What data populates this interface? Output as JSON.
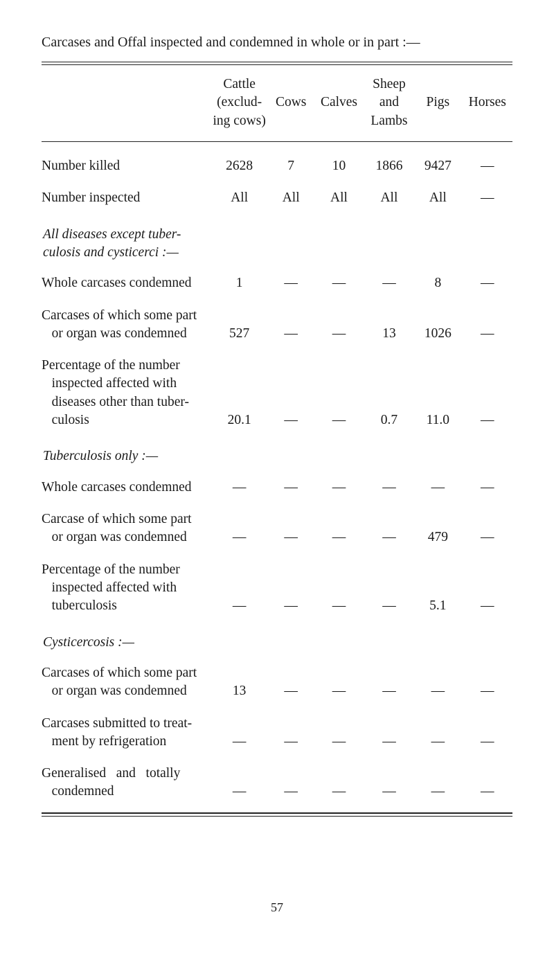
{
  "title": "Carcases and Offal inspected and condemned in whole or in part :—",
  "page_number": "57",
  "dash": "—",
  "columns": {
    "cattle_line1": "Cattle",
    "cattle_line2": "(exclud-",
    "cattle_line3": "ing cows)",
    "cows": "Cows",
    "calves": "Calves",
    "sheep_line1": "Sheep",
    "sheep_line2": "and",
    "sheep_line3": "Lambs",
    "pigs": "Pigs",
    "horses": "Horses"
  },
  "sections": {
    "diseases_except": "All diseases except tuber-culosis and cysticerci :—",
    "tb_only": "Tuberculosis only :—",
    "cysticercosis": "Cysticercosis :—"
  },
  "row_labels": {
    "number_killed": "Number killed",
    "number_inspected": "Number inspected",
    "whole_condemned": "Whole carcases condemned",
    "part_condemned": "Carcases of which some part or organ was condemned",
    "pct_other": "Percentage of the number inspected affected with diseases other than tuber-culosis",
    "tb_whole": "Whole carcases condemned",
    "tb_part": "Carcase of which some part or organ was condemned",
    "pct_tb": "Percentage of the number inspected affected with tuberculosis",
    "cyst_part": "Carcases of which some part or organ was condemned",
    "cyst_refrig": "Carcases submitted to treat-ment by refrigeration",
    "cyst_general": "Generalised and totally condemned"
  },
  "rows": {
    "number_killed": {
      "cattle": "2628",
      "cows": "7",
      "calves": "10",
      "sheep": "1866",
      "pigs": "9427",
      "horses": "—"
    },
    "number_inspected": {
      "cattle": "All",
      "cows": "All",
      "calves": "All",
      "sheep": "All",
      "pigs": "All",
      "horses": "—"
    },
    "whole_condemned": {
      "cattle": "1",
      "cows": "—",
      "calves": "—",
      "sheep": "—",
      "pigs": "8",
      "horses": "—"
    },
    "part_condemned": {
      "cattle": "527",
      "cows": "—",
      "calves": "—",
      "sheep": "13",
      "pigs": "1026",
      "horses": "—"
    },
    "pct_other": {
      "cattle": "20.1",
      "cows": "—",
      "calves": "—",
      "sheep": "0.7",
      "pigs": "11.0",
      "horses": "—"
    },
    "tb_whole": {
      "cattle": "—",
      "cows": "—",
      "calves": "—",
      "sheep": "—",
      "pigs": "—",
      "horses": "—"
    },
    "tb_part": {
      "cattle": "—",
      "cows": "—",
      "calves": "—",
      "sheep": "—",
      "pigs": "479",
      "horses": "—"
    },
    "pct_tb": {
      "cattle": "—",
      "cows": "—",
      "calves": "—",
      "sheep": "—",
      "pigs": "5.1",
      "horses": "—"
    },
    "cyst_part": {
      "cattle": "13",
      "cows": "—",
      "calves": "—",
      "sheep": "—",
      "pigs": "—",
      "horses": "—"
    },
    "cyst_refrig": {
      "cattle": "—",
      "cows": "—",
      "calves": "—",
      "sheep": "—",
      "pigs": "—",
      "horses": "—"
    },
    "cyst_general": {
      "cattle": "—",
      "cows": "—",
      "calves": "—",
      "sheep": "—",
      "pigs": "—",
      "horses": "—"
    }
  }
}
